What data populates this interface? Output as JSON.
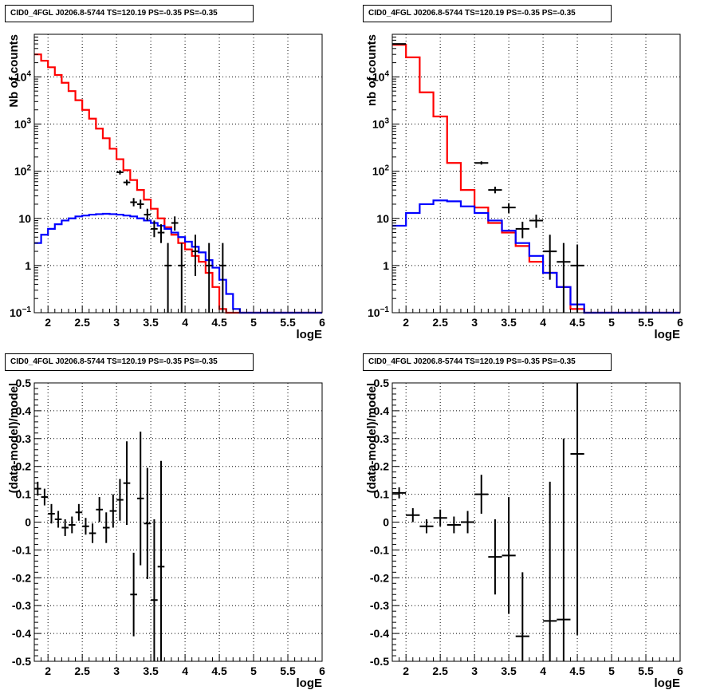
{
  "chart_data": [
    {
      "type": "histogram",
      "title": "CID0_4FGL J0206.8-5744 TS=120.19 PS=-0.35 PS=-0.35",
      "xlabel": "logE",
      "ylabel": "Nb of counts",
      "yscale": "log",
      "xlim": [
        1.8,
        6.0
      ],
      "ylim": [
        0.1,
        80000
      ],
      "grid": true,
      "xticks": [
        "2",
        "2.5",
        "3",
        "3.5",
        "4",
        "4.5",
        "5",
        "5.5",
        "6"
      ],
      "yticks": [
        {
          "v": 0.1,
          "label": "10",
          "exp": "−1"
        },
        {
          "v": 1,
          "label": "1",
          "exp": ""
        },
        {
          "v": 10,
          "label": "10",
          "exp": ""
        },
        {
          "v": 100,
          "label": "10",
          "exp": "2"
        },
        {
          "v": 1000,
          "label": "10",
          "exp": "3"
        },
        {
          "v": 10000,
          "label": "10",
          "exp": "4"
        }
      ],
      "bin_edges_start": 1.8,
      "bin_width": 0.1,
      "series": [
        {
          "name": "",
          "color": "#ff0000",
          "kind": "step",
          "values": [
            30000,
            22000,
            16000,
            11000,
            7500,
            5000,
            3200,
            2000,
            1300,
            800,
            500,
            300,
            180,
            105,
            65,
            40,
            25,
            16,
            10,
            6.5,
            4.5,
            3,
            2.2,
            1.6,
            1.2,
            0.7,
            0.35,
            0.12,
            0.1,
            0.1,
            0.1,
            0.1,
            0.1,
            0.1,
            0.1,
            0.1,
            0.1,
            0.1,
            0.1,
            0.1,
            0.1,
            0.1
          ]
        },
        {
          "name": "",
          "color": "#0000ff",
          "kind": "step",
          "values": [
            3,
            4.5,
            6,
            7.5,
            9,
            10,
            11,
            11.5,
            12,
            12.3,
            12.5,
            12.3,
            12,
            11.5,
            11,
            10,
            9,
            8,
            7,
            6,
            5,
            4,
            3.2,
            2.5,
            1.9,
            1.3,
            0.9,
            0.5,
            0.25,
            0.12,
            0.1,
            0.1,
            0.1,
            0.1,
            0.1,
            0.1,
            0.1,
            0.1,
            0.1,
            0.1,
            0.1,
            0.1
          ]
        },
        {
          "name": "",
          "color": "#000000",
          "kind": "points",
          "points": [
            {
              "x": 3.05,
              "y": 95,
              "lo": 85,
              "hi": 105
            },
            {
              "x": 3.15,
              "y": 58,
              "lo": 50,
              "hi": 66
            },
            {
              "x": 3.25,
              "y": 22,
              "lo": 18,
              "hi": 27
            },
            {
              "x": 3.35,
              "y": 20,
              "lo": 16,
              "hi": 25
            },
            {
              "x": 3.45,
              "y": 12,
              "lo": 9,
              "hi": 16
            },
            {
              "x": 3.55,
              "y": 6,
              "lo": 4,
              "hi": 9
            },
            {
              "x": 3.65,
              "y": 5,
              "lo": 3,
              "hi": 7.5
            },
            {
              "x": 3.75,
              "y": 1,
              "lo": 0.1,
              "hi": 3
            },
            {
              "x": 3.85,
              "y": 8,
              "lo": 5.5,
              "hi": 11
            },
            {
              "x": 3.95,
              "y": 1,
              "lo": 0.1,
              "hi": 3
            },
            {
              "x": 4.15,
              "y": 2,
              "lo": 0.6,
              "hi": 4.5
            },
            {
              "x": 4.35,
              "y": 1,
              "lo": 0.1,
              "hi": 3
            },
            {
              "x": 4.55,
              "y": 1,
              "lo": 0.1,
              "hi": 3
            }
          ]
        }
      ]
    },
    {
      "type": "histogram",
      "title": "CID0_4FGL J0206.8-5744 TS=120.19 PS=-0.35 PS=-0.35",
      "xlabel": "logE",
      "ylabel": "nb of counts",
      "yscale": "log",
      "xlim": [
        1.8,
        6.0
      ],
      "ylim": [
        0.1,
        80000
      ],
      "grid": true,
      "xticks": [
        "2",
        "2.5",
        "3",
        "3.5",
        "4",
        "4.5",
        "5",
        "5.5",
        "6"
      ],
      "yticks": [
        {
          "v": 0.1,
          "label": "10",
          "exp": "−1"
        },
        {
          "v": 1,
          "label": "1",
          "exp": ""
        },
        {
          "v": 10,
          "label": "10",
          "exp": ""
        },
        {
          "v": 100,
          "label": "10",
          "exp": "2"
        },
        {
          "v": 1000,
          "label": "10",
          "exp": "3"
        },
        {
          "v": 10000,
          "label": "10",
          "exp": "4"
        }
      ],
      "bin_edges_start": 1.8,
      "bin_width": 0.2,
      "series": [
        {
          "name": "",
          "color": "#ff0000",
          "kind": "step",
          "values": [
            48000,
            26000,
            4700,
            1450,
            150,
            40,
            17,
            8,
            5,
            2.6,
            1.2,
            0.7,
            0.35,
            0.12,
            0.1,
            0.1,
            0.1,
            0.1,
            0.1,
            0.1,
            0.1
          ]
        },
        {
          "name": "",
          "color": "#0000ff",
          "kind": "step",
          "values": [
            7,
            13,
            20,
            24,
            23,
            18,
            13,
            9,
            5.5,
            3,
            1.6,
            0.7,
            0.35,
            0.15,
            0.1,
            0.1,
            0.1,
            0.1,
            0.1,
            0.1,
            0.1
          ]
        },
        {
          "name": "",
          "color": "#000000",
          "kind": "points",
          "points": [
            {
              "x": 1.9,
              "y": 50000,
              "lo": 49000,
              "hi": 51000
            },
            {
              "x": 3.1,
              "y": 150,
              "lo": 138,
              "hi": 162
            },
            {
              "x": 3.3,
              "y": 40,
              "lo": 34,
              "hi": 47
            },
            {
              "x": 3.5,
              "y": 17,
              "lo": 13,
              "hi": 21
            },
            {
              "x": 3.7,
              "y": 6,
              "lo": 3.8,
              "hi": 8.5
            },
            {
              "x": 3.9,
              "y": 9,
              "lo": 6.3,
              "hi": 12
            },
            {
              "x": 4.1,
              "y": 2,
              "lo": 0.5,
              "hi": 4.5
            },
            {
              "x": 4.3,
              "y": 1.2,
              "lo": 0.1,
              "hi": 3
            },
            {
              "x": 4.5,
              "y": 1,
              "lo": 0.1,
              "hi": 2.8
            }
          ]
        }
      ]
    },
    {
      "type": "scatter",
      "title": "CID0_4FGL J0206.8-5744 TS=120.19 PS=-0.35 PS=-0.35",
      "xlabel": "logE",
      "ylabel": "(data-model)/model",
      "yscale": "linear",
      "xlim": [
        1.8,
        6.0
      ],
      "ylim": [
        -0.5,
        0.5
      ],
      "grid": true,
      "xticks": [
        "2",
        "2.5",
        "3",
        "3.5",
        "4",
        "4.5",
        "5",
        "5.5",
        "6"
      ],
      "yticks": [
        "-0.5",
        "-0.4",
        "-0.3",
        "-0.2",
        "-0.1",
        "0",
        "0.1",
        "0.2",
        "0.3",
        "0.4",
        "0.5"
      ],
      "half_width": 0.05,
      "points": [
        {
          "x": 1.85,
          "y": 0.12,
          "err": 0.025
        },
        {
          "x": 1.95,
          "y": 0.09,
          "err": 0.03
        },
        {
          "x": 2.05,
          "y": 0.03,
          "err": 0.035
        },
        {
          "x": 2.15,
          "y": 0.01,
          "err": 0.03
        },
        {
          "x": 2.25,
          "y": -0.02,
          "err": 0.03
        },
        {
          "x": 2.35,
          "y": -0.01,
          "err": 0.03
        },
        {
          "x": 2.45,
          "y": 0.035,
          "err": 0.03
        },
        {
          "x": 2.55,
          "y": -0.015,
          "err": 0.03
        },
        {
          "x": 2.65,
          "y": -0.04,
          "err": 0.035
        },
        {
          "x": 2.75,
          "y": 0.045,
          "err": 0.045
        },
        {
          "x": 2.85,
          "y": -0.02,
          "err": 0.055
        },
        {
          "x": 2.95,
          "y": 0.04,
          "err": 0.06
        },
        {
          "x": 3.05,
          "y": 0.08,
          "err": 0.075
        },
        {
          "x": 3.15,
          "y": 0.14,
          "err": 0.15
        },
        {
          "x": 3.25,
          "y": -0.26,
          "err": 0.15
        },
        {
          "x": 3.35,
          "y": 0.085,
          "err": 0.24
        },
        {
          "x": 3.45,
          "y": -0.005,
          "err": 0.2
        },
        {
          "x": 3.55,
          "y": -0.28,
          "err": 0.29
        },
        {
          "x": 3.65,
          "y": -0.16,
          "err": 0.38
        }
      ]
    },
    {
      "type": "scatter",
      "title": "CID0_4FGL J0206.8-5744 TS=120.19 PS=-0.35 PS=-0.35",
      "xlabel": "logE",
      "ylabel": "(data-model)/model",
      "yscale": "linear",
      "xlim": [
        1.8,
        6.0
      ],
      "ylim": [
        -0.5,
        0.5
      ],
      "grid": true,
      "xticks": [
        "2",
        "2.5",
        "3",
        "3.5",
        "4",
        "4.5",
        "5",
        "5.5",
        "6"
      ],
      "yticks": [
        "-0.5",
        "-0.4",
        "-0.3",
        "-0.2",
        "-0.1",
        "0",
        "0.1",
        "0.2",
        "0.3",
        "0.4",
        "0.5"
      ],
      "half_width": 0.1,
      "points": [
        {
          "x": 1.9,
          "y": 0.105,
          "err": 0.02
        },
        {
          "x": 2.1,
          "y": 0.025,
          "err": 0.025
        },
        {
          "x": 2.3,
          "y": -0.015,
          "err": 0.025
        },
        {
          "x": 2.5,
          "y": 0.015,
          "err": 0.03
        },
        {
          "x": 2.7,
          "y": -0.01,
          "err": 0.03
        },
        {
          "x": 2.9,
          "y": 0.0,
          "err": 0.04
        },
        {
          "x": 3.1,
          "y": 0.1,
          "err": 0.07
        },
        {
          "x": 3.3,
          "y": -0.125,
          "err": 0.135
        },
        {
          "x": 3.5,
          "y": -0.12,
          "err": 0.21
        },
        {
          "x": 3.7,
          "y": -0.41,
          "err": 0.23
        },
        {
          "x": 4.1,
          "y": -0.355,
          "err": 0.5
        },
        {
          "x": 4.3,
          "y": -0.35,
          "err": 0.65
        },
        {
          "x": 4.5,
          "y": 0.245,
          "err": 0.65
        }
      ]
    }
  ]
}
